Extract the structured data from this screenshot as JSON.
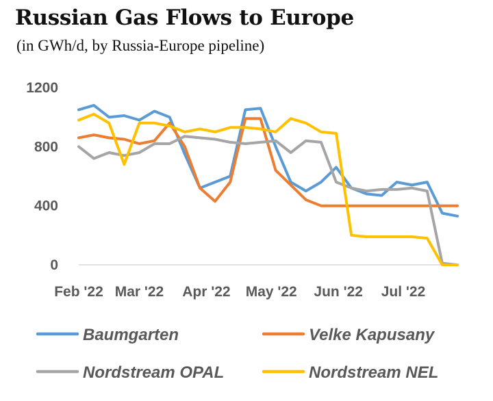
{
  "chart_data": {
    "type": "line",
    "title": "Russian Gas Flows to Europe",
    "subtitle": "(in GWh/d, by Russia-Europe pipeline)",
    "xlabel": "",
    "ylabel": "",
    "ylim": [
      0,
      1200
    ],
    "yticks": [
      "1200",
      "800",
      "400",
      "0"
    ],
    "xtick_labels": [
      "Feb '22",
      "Mar '22",
      "Apr '22",
      "May '22",
      "Jun '22",
      "Jul '22"
    ],
    "x_dates": [
      "2022-02-01",
      "2022-02-08",
      "2022-02-15",
      "2022-02-22",
      "2022-03-01",
      "2022-03-08",
      "2022-03-15",
      "2022-03-22",
      "2022-03-29",
      "2022-04-05",
      "2022-04-12",
      "2022-04-19",
      "2022-04-26",
      "2022-05-03",
      "2022-05-10",
      "2022-05-17",
      "2022-05-24",
      "2022-05-31",
      "2022-06-07",
      "2022-06-14",
      "2022-06-21",
      "2022-06-28",
      "2022-07-05",
      "2022-07-12",
      "2022-07-19",
      "2022-07-26"
    ],
    "series": [
      {
        "name": "Baumgarten",
        "color": "#5B9BD5",
        "values": [
          1050,
          1080,
          1000,
          1010,
          980,
          1040,
          1000,
          750,
          520,
          560,
          600,
          1050,
          1060,
          800,
          560,
          500,
          560,
          660,
          520,
          480,
          470,
          560,
          540,
          560,
          350,
          330
        ]
      },
      {
        "name": "Velke Kapusany",
        "color": "#ED7D31",
        "values": [
          860,
          880,
          860,
          850,
          820,
          840,
          960,
          800,
          520,
          430,
          560,
          990,
          990,
          640,
          540,
          440,
          400,
          400,
          400,
          400,
          400,
          400,
          400,
          400,
          400,
          400
        ]
      },
      {
        "name": "Nordstream OPAL",
        "color": "#A5A5A5",
        "values": [
          800,
          720,
          760,
          740,
          760,
          820,
          820,
          870,
          860,
          850,
          830,
          820,
          830,
          840,
          760,
          840,
          830,
          560,
          520,
          500,
          510,
          510,
          520,
          500,
          10,
          0
        ]
      },
      {
        "name": "Nordstream NEL",
        "color": "#FFC000",
        "values": [
          980,
          1020,
          960,
          680,
          960,
          960,
          940,
          900,
          920,
          900,
          930,
          930,
          920,
          900,
          990,
          960,
          900,
          890,
          200,
          190,
          190,
          190,
          190,
          180,
          0,
          0
        ]
      }
    ],
    "legend": {
      "position": "bottom",
      "columns": 2
    },
    "grid": false
  }
}
